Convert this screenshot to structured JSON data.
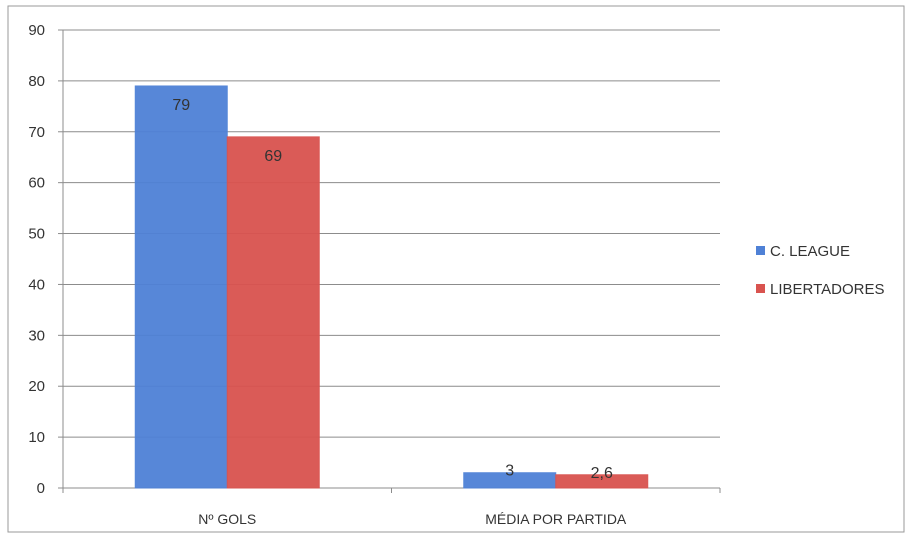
{
  "chart_data": {
    "type": "bar",
    "title": "",
    "xlabel": "",
    "ylabel": "",
    "categories": [
      "Nº GOLS",
      "MÉDIA POR PARTIDA"
    ],
    "series": [
      {
        "name": "C. LEAGUE",
        "values": [
          79,
          3
        ],
        "labels": [
          "79",
          "3"
        ],
        "color": "#4f81d6"
      },
      {
        "name": "LIBERTADORES",
        "values": [
          69,
          2.6
        ],
        "labels": [
          "69",
          "2,6"
        ],
        "color": "#d9534f"
      }
    ],
    "ylim": [
      0,
      90
    ],
    "yticks": [
      "0",
      "10",
      "20",
      "30",
      "40",
      "50",
      "60",
      "70",
      "80",
      "90"
    ],
    "grid": true,
    "legend_position": "right"
  }
}
